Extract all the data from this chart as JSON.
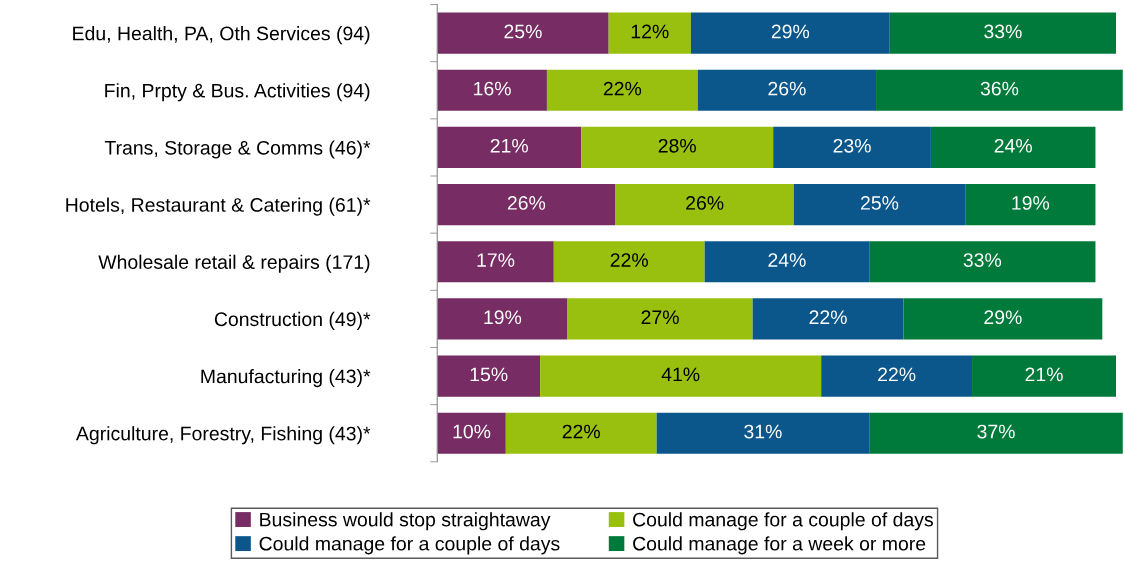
{
  "chart_data": {
    "type": "bar",
    "orientation": "horizontal",
    "stacked": true,
    "legend": "bottom",
    "grid": false,
    "categories": [
      "Edu, Health, PA, Oth Services (94)",
      "Fin, Prpty & Bus. Activities (94)",
      "Trans, Storage & Comms (46)*",
      "Hotels, Restaurant & Catering (61)*",
      "Wholesale retail & repairs (171)",
      "Construction (49)*",
      "Manufacturing (43)*",
      "Agriculture, Forestry, Fishing (43)*"
    ],
    "series": [
      {
        "name": "Business would stop straightaway",
        "color": "#772d63",
        "values": [
          25,
          16,
          21,
          26,
          17,
          19,
          15,
          10
        ],
        "value_labels": [
          "25%",
          "16%",
          "21%",
          "26%",
          "17%",
          "19%",
          "15%",
          "10%"
        ]
      },
      {
        "name": "Could manage for a couple of days",
        "color": "#99bf0f",
        "values": [
          12,
          22,
          28,
          26,
          22,
          27,
          41,
          22
        ],
        "value_labels": [
          "12%",
          "22%",
          "28%",
          "26%",
          "22%",
          "27%",
          "41%",
          "22%"
        ]
      },
      {
        "name": "Could manage for a couple of days",
        "color": "#0b578c",
        "values": [
          29,
          26,
          23,
          25,
          24,
          22,
          22,
          31
        ],
        "value_labels": [
          "29%",
          "26%",
          "23%",
          "25%",
          "24%",
          "22%",
          "22%",
          "31%"
        ]
      },
      {
        "name": "Could manage for a week or more",
        "color": "#007a3b",
        "values": [
          33,
          36,
          24,
          19,
          33,
          29,
          21,
          37
        ],
        "value_labels": [
          "33%",
          "36%",
          "24%",
          "19%",
          "33%",
          "29%",
          "21%",
          "37%"
        ]
      }
    ]
  }
}
